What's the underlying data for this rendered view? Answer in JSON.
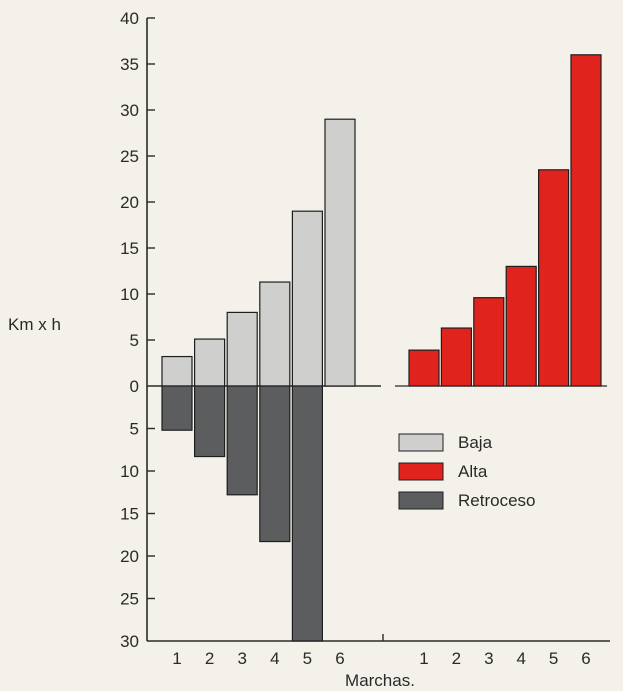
{
  "chart_data": {
    "type": "bar",
    "ylabel": "Km x h",
    "xlabel": "Marchas.",
    "yticks_up": [
      "0",
      "5",
      "10",
      "15",
      "20",
      "25",
      "30",
      "35",
      "40"
    ],
    "yticks_down": [
      "5",
      "10",
      "15",
      "20",
      "25",
      "30"
    ],
    "ylim_up": [
      0,
      40
    ],
    "ylim_down": [
      0,
      30
    ],
    "grid": false,
    "legend_position": "center-right",
    "colors": {
      "Baja": "#cfd0cd",
      "Alta": "#e0241d",
      "Retroceso": "#5c5d5f"
    },
    "groups": [
      {
        "categories": [
          "1",
          "2",
          "3",
          "4",
          "5",
          "6"
        ],
        "series": [
          {
            "name": "Baja",
            "direction": "up",
            "values": [
              3.2,
              5.1,
              8.0,
              11.3,
              19.0,
              29.0
            ]
          },
          {
            "name": "Retroceso",
            "direction": "down",
            "values": [
              5.2,
              8.3,
              12.8,
              18.3,
              30.0,
              0
            ]
          }
        ]
      },
      {
        "categories": [
          "1",
          "2",
          "3",
          "4",
          "5",
          "6"
        ],
        "series": [
          {
            "name": "Alta",
            "direction": "up",
            "values": [
              3.9,
              6.3,
              9.6,
              13.0,
              23.5,
              36.0
            ]
          }
        ]
      }
    ],
    "legend": [
      {
        "label": "Baja",
        "color": "#cfd0cd"
      },
      {
        "label": "Alta",
        "color": "#e0241d"
      },
      {
        "label": "Retroceso",
        "color": "#5c5d5f"
      }
    ]
  }
}
